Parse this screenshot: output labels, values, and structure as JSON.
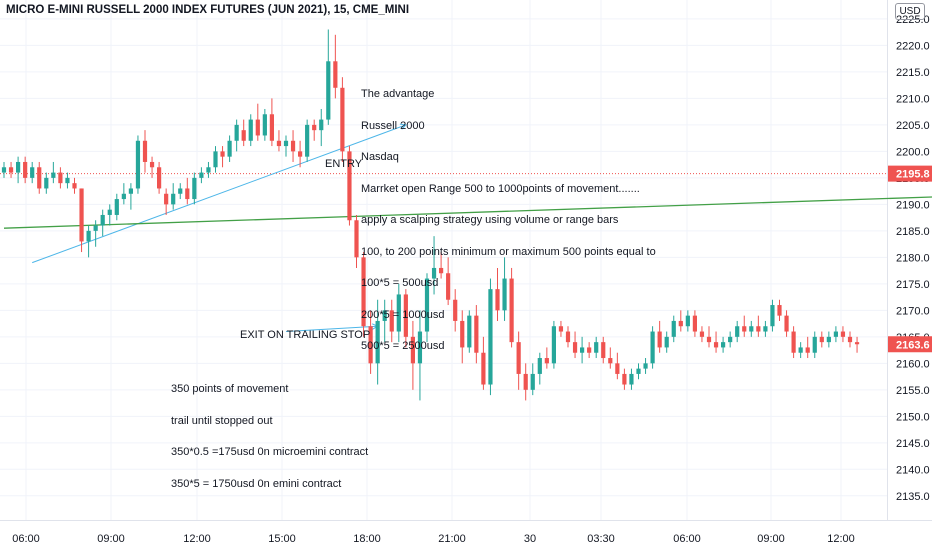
{
  "header": {
    "title": "MICRO E-MINI RUSSELL 2000 INDEX FUTURES (JUN 2021), 15, CME_MINI",
    "currency": "USD"
  },
  "colors": {
    "up": "#26a69a",
    "down": "#ef5350",
    "trend_line": "#4db6e8",
    "support_line": "#43a047",
    "price_line": "#ef5350"
  },
  "annotations": {
    "advantage": [
      "The advantage",
      "Russell 2000",
      "Nasdaq",
      "Marrket open Range 500 to 1000points of movement.......",
      "apply a scalping strategy using volume or range bars",
      "100, to 200 points minimum or maximum 500 points equal to",
      "100*5 = 500usd",
      "200*5 = 1000usd",
      "500*5 = 2500usd"
    ],
    "entry": "ENTRY",
    "exit": "EXIT ON TRAILING STOP",
    "result": [
      "350 points of movement",
      "trail until stopped out",
      "350*0.5 =175usd 0n microemini contract",
      "350*5 = 1750usd 0n emini contract"
    ]
  },
  "chart_data": {
    "type": "candlestick",
    "title": "MICRO E-MINI RUSSELL 2000 INDEX FUTURES (JUN 2021), 15, CME_MINI",
    "ylim": [
      2131,
      2228
    ],
    "y_ticks": [
      2135.0,
      2140.0,
      2145.0,
      2150.0,
      2155.0,
      2160.0,
      2165.0,
      2170.0,
      2175.0,
      2180.0,
      2185.0,
      2190.0,
      2195.0,
      2200.0,
      2205.0,
      2210.0,
      2215.0,
      2220.0,
      2225.0
    ],
    "x_ticks": [
      "06:00",
      "09:00",
      "12:00",
      "15:00",
      "18:00",
      "21:00",
      "30",
      "03:30",
      "06:00",
      "09:00",
      "12:00"
    ],
    "price_labels": [
      {
        "value": 2195.8,
        "label": "2195.8"
      },
      {
        "value": 2163.6,
        "label": "2163.6"
      }
    ],
    "candles": [
      {
        "o": 2196,
        "h": 2198,
        "l": 2195,
        "c": 2197
      },
      {
        "o": 2197,
        "h": 2198,
        "l": 2195,
        "c": 2196
      },
      {
        "o": 2196,
        "h": 2199,
        "l": 2194,
        "c": 2198
      },
      {
        "o": 2198,
        "h": 2199,
        "l": 2194,
        "c": 2195
      },
      {
        "o": 2195,
        "h": 2198,
        "l": 2194,
        "c": 2197
      },
      {
        "o": 2197,
        "h": 2198,
        "l": 2192,
        "c": 2193
      },
      {
        "o": 2193,
        "h": 2196,
        "l": 2192,
        "c": 2195
      },
      {
        "o": 2195,
        "h": 2198,
        "l": 2194,
        "c": 2196
      },
      {
        "o": 2196,
        "h": 2197,
        "l": 2193,
        "c": 2194
      },
      {
        "o": 2194,
        "h": 2196,
        "l": 2193,
        "c": 2195
      },
      {
        "o": 2194,
        "h": 2195,
        "l": 2192,
        "c": 2193
      },
      {
        "o": 2193,
        "h": 2193,
        "l": 2181,
        "c": 2183
      },
      {
        "o": 2183,
        "h": 2186,
        "l": 2180,
        "c": 2185
      },
      {
        "o": 2185,
        "h": 2187,
        "l": 2182,
        "c": 2186
      },
      {
        "o": 2186,
        "h": 2189,
        "l": 2184,
        "c": 2188
      },
      {
        "o": 2188,
        "h": 2190,
        "l": 2186,
        "c": 2189
      },
      {
        "o": 2188,
        "h": 2192,
        "l": 2187,
        "c": 2191
      },
      {
        "o": 2191,
        "h": 2194,
        "l": 2190,
        "c": 2192
      },
      {
        "o": 2192,
        "h": 2194,
        "l": 2189,
        "c": 2193
      },
      {
        "o": 2193,
        "h": 2203,
        "l": 2192,
        "c": 2202
      },
      {
        "o": 2202,
        "h": 2204,
        "l": 2196,
        "c": 2198
      },
      {
        "o": 2198,
        "h": 2199,
        "l": 2195,
        "c": 2197
      },
      {
        "o": 2197,
        "h": 2198,
        "l": 2192,
        "c": 2193
      },
      {
        "o": 2192,
        "h": 2193,
        "l": 2188,
        "c": 2190
      },
      {
        "o": 2190,
        "h": 2194,
        "l": 2189,
        "c": 2192
      },
      {
        "o": 2192,
        "h": 2194,
        "l": 2191,
        "c": 2193
      },
      {
        "o": 2193,
        "h": 2195,
        "l": 2190,
        "c": 2191
      },
      {
        "o": 2191,
        "h": 2196,
        "l": 2190,
        "c": 2195
      },
      {
        "o": 2195,
        "h": 2197,
        "l": 2194,
        "c": 2196
      },
      {
        "o": 2196,
        "h": 2198,
        "l": 2195,
        "c": 2197
      },
      {
        "o": 2197,
        "h": 2201,
        "l": 2196,
        "c": 2200
      },
      {
        "o": 2200,
        "h": 2201,
        "l": 2197,
        "c": 2199
      },
      {
        "o": 2199,
        "h": 2203,
        "l": 2198,
        "c": 2202
      },
      {
        "o": 2202,
        "h": 2206,
        "l": 2200,
        "c": 2205
      },
      {
        "o": 2204,
        "h": 2206,
        "l": 2201,
        "c": 2202
      },
      {
        "o": 2202,
        "h": 2207,
        "l": 2201,
        "c": 2206
      },
      {
        "o": 2206,
        "h": 2209,
        "l": 2202,
        "c": 2203
      },
      {
        "o": 2203,
        "h": 2208,
        "l": 2202,
        "c": 2207
      },
      {
        "o": 2207,
        "h": 2210,
        "l": 2201,
        "c": 2202
      },
      {
        "o": 2202,
        "h": 2204,
        "l": 2200,
        "c": 2201
      },
      {
        "o": 2201,
        "h": 2203,
        "l": 2199,
        "c": 2202
      },
      {
        "o": 2202,
        "h": 2204,
        "l": 2198,
        "c": 2200
      },
      {
        "o": 2200,
        "h": 2202,
        "l": 2197,
        "c": 2199
      },
      {
        "o": 2199,
        "h": 2206,
        "l": 2198,
        "c": 2205
      },
      {
        "o": 2205,
        "h": 2206,
        "l": 2202,
        "c": 2204
      },
      {
        "o": 2204,
        "h": 2208,
        "l": 2201,
        "c": 2206
      },
      {
        "o": 2206,
        "h": 2223,
        "l": 2205,
        "c": 2217
      },
      {
        "o": 2217,
        "h": 2222,
        "l": 2210,
        "c": 2212
      },
      {
        "o": 2212,
        "h": 2214,
        "l": 2198,
        "c": 2200
      },
      {
        "o": 2200,
        "h": 2201,
        "l": 2186,
        "c": 2187
      },
      {
        "o": 2187,
        "h": 2188,
        "l": 2178,
        "c": 2180
      },
      {
        "o": 2180,
        "h": 2181,
        "l": 2165,
        "c": 2167
      },
      {
        "o": 2167,
        "h": 2170,
        "l": 2158,
        "c": 2160
      },
      {
        "o": 2160,
        "h": 2172,
        "l": 2156,
        "c": 2168
      },
      {
        "o": 2168,
        "h": 2172,
        "l": 2164,
        "c": 2170
      },
      {
        "o": 2170,
        "h": 2172,
        "l": 2164,
        "c": 2166
      },
      {
        "o": 2166,
        "h": 2175,
        "l": 2164,
        "c": 2173
      },
      {
        "o": 2173,
        "h": 2174,
        "l": 2163,
        "c": 2165
      },
      {
        "o": 2165,
        "h": 2168,
        "l": 2155,
        "c": 2160
      },
      {
        "o": 2160,
        "h": 2170,
        "l": 2153,
        "c": 2166
      },
      {
        "o": 2166,
        "h": 2177,
        "l": 2164,
        "c": 2176
      },
      {
        "o": 2176,
        "h": 2184,
        "l": 2173,
        "c": 2178
      },
      {
        "o": 2178,
        "h": 2181,
        "l": 2176,
        "c": 2177
      },
      {
        "o": 2177,
        "h": 2180,
        "l": 2171,
        "c": 2172
      },
      {
        "o": 2172,
        "h": 2174,
        "l": 2166,
        "c": 2168
      },
      {
        "o": 2168,
        "h": 2170,
        "l": 2160,
        "c": 2163
      },
      {
        "o": 2163,
        "h": 2170,
        "l": 2162,
        "c": 2169
      },
      {
        "o": 2169,
        "h": 2171,
        "l": 2160,
        "c": 2162
      },
      {
        "o": 2162,
        "h": 2165,
        "l": 2155,
        "c": 2156
      },
      {
        "o": 2156,
        "h": 2176,
        "l": 2154,
        "c": 2174
      },
      {
        "o": 2174,
        "h": 2178,
        "l": 2168,
        "c": 2170
      },
      {
        "o": 2170,
        "h": 2180,
        "l": 2168,
        "c": 2176
      },
      {
        "o": 2176,
        "h": 2178,
        "l": 2163,
        "c": 2164
      },
      {
        "o": 2164,
        "h": 2166,
        "l": 2155,
        "c": 2158
      },
      {
        "o": 2158,
        "h": 2160,
        "l": 2153,
        "c": 2155
      },
      {
        "o": 2155,
        "h": 2160,
        "l": 2154,
        "c": 2158
      },
      {
        "o": 2158,
        "h": 2162,
        "l": 2156,
        "c": 2161
      },
      {
        "o": 2161,
        "h": 2163,
        "l": 2159,
        "c": 2160
      },
      {
        "o": 2160,
        "h": 2168,
        "l": 2159,
        "c": 2167
      },
      {
        "o": 2167,
        "h": 2168,
        "l": 2165,
        "c": 2166
      },
      {
        "o": 2166,
        "h": 2167,
        "l": 2163,
        "c": 2164
      },
      {
        "o": 2164,
        "h": 2166,
        "l": 2161,
        "c": 2162
      },
      {
        "o": 2162,
        "h": 2165,
        "l": 2160,
        "c": 2163
      },
      {
        "o": 2163,
        "h": 2164,
        "l": 2161,
        "c": 2162
      },
      {
        "o": 2162,
        "h": 2165,
        "l": 2161,
        "c": 2164
      },
      {
        "o": 2164,
        "h": 2165,
        "l": 2160,
        "c": 2161
      },
      {
        "o": 2161,
        "h": 2163,
        "l": 2159,
        "c": 2160
      },
      {
        "o": 2160,
        "h": 2162,
        "l": 2157,
        "c": 2158
      },
      {
        "o": 2158,
        "h": 2159,
        "l": 2155,
        "c": 2156
      },
      {
        "o": 2156,
        "h": 2159,
        "l": 2155,
        "c": 2158
      },
      {
        "o": 2158,
        "h": 2160,
        "l": 2157,
        "c": 2159
      },
      {
        "o": 2159,
        "h": 2161,
        "l": 2158,
        "c": 2160
      },
      {
        "o": 2160,
        "h": 2167,
        "l": 2159,
        "c": 2166
      },
      {
        "o": 2166,
        "h": 2168,
        "l": 2162,
        "c": 2163
      },
      {
        "o": 2163,
        "h": 2166,
        "l": 2162,
        "c": 2165
      },
      {
        "o": 2165,
        "h": 2169,
        "l": 2164,
        "c": 2168
      },
      {
        "o": 2168,
        "h": 2170,
        "l": 2166,
        "c": 2167
      },
      {
        "o": 2167,
        "h": 2170,
        "l": 2166,
        "c": 2169
      },
      {
        "o": 2169,
        "h": 2170,
        "l": 2165,
        "c": 2166
      },
      {
        "o": 2166,
        "h": 2167,
        "l": 2164,
        "c": 2165
      },
      {
        "o": 2165,
        "h": 2167,
        "l": 2163,
        "c": 2164
      },
      {
        "o": 2164,
        "h": 2166,
        "l": 2162,
        "c": 2163
      },
      {
        "o": 2163,
        "h": 2165,
        "l": 2162,
        "c": 2164
      },
      {
        "o": 2164,
        "h": 2166,
        "l": 2163,
        "c": 2165
      },
      {
        "o": 2165,
        "h": 2168,
        "l": 2164,
        "c": 2167
      },
      {
        "o": 2167,
        "h": 2169,
        "l": 2165,
        "c": 2166
      },
      {
        "o": 2166,
        "h": 2168,
        "l": 2165,
        "c": 2167
      },
      {
        "o": 2167,
        "h": 2169,
        "l": 2165,
        "c": 2166
      },
      {
        "o": 2166,
        "h": 2168,
        "l": 2165,
        "c": 2167
      },
      {
        "o": 2167,
        "h": 2172,
        "l": 2166,
        "c": 2171
      },
      {
        "o": 2171,
        "h": 2172,
        "l": 2168,
        "c": 2169
      },
      {
        "o": 2169,
        "h": 2170,
        "l": 2165,
        "c": 2166
      },
      {
        "o": 2166,
        "h": 2167,
        "l": 2161,
        "c": 2162
      },
      {
        "o": 2162,
        "h": 2164,
        "l": 2161,
        "c": 2163
      },
      {
        "o": 2163,
        "h": 2165,
        "l": 2161,
        "c": 2162
      },
      {
        "o": 2162,
        "h": 2166,
        "l": 2161,
        "c": 2165
      },
      {
        "o": 2165,
        "h": 2166,
        "l": 2163,
        "c": 2164
      },
      {
        "o": 2164,
        "h": 2166,
        "l": 2163,
        "c": 2165
      },
      {
        "o": 2165,
        "h": 2167,
        "l": 2164,
        "c": 2166
      },
      {
        "o": 2166,
        "h": 2167,
        "l": 2164,
        "c": 2165
      },
      {
        "o": 2165,
        "h": 2166,
        "l": 2163,
        "c": 2164
      },
      {
        "o": 2164,
        "h": 2165,
        "l": 2162,
        "c": 2163.6
      }
    ],
    "trend_lines": [
      {
        "name": "ascending-trendline",
        "from": [
          4,
          2179
        ],
        "to": [
          57,
          2205
        ]
      },
      {
        "name": "support-line",
        "from": [
          0,
          2185.5
        ],
        "to": [
          134,
          2191.5
        ]
      },
      {
        "name": "exit-arrow",
        "from": [
          40,
          2166
        ],
        "to": [
          53,
          2167
        ]
      }
    ]
  }
}
